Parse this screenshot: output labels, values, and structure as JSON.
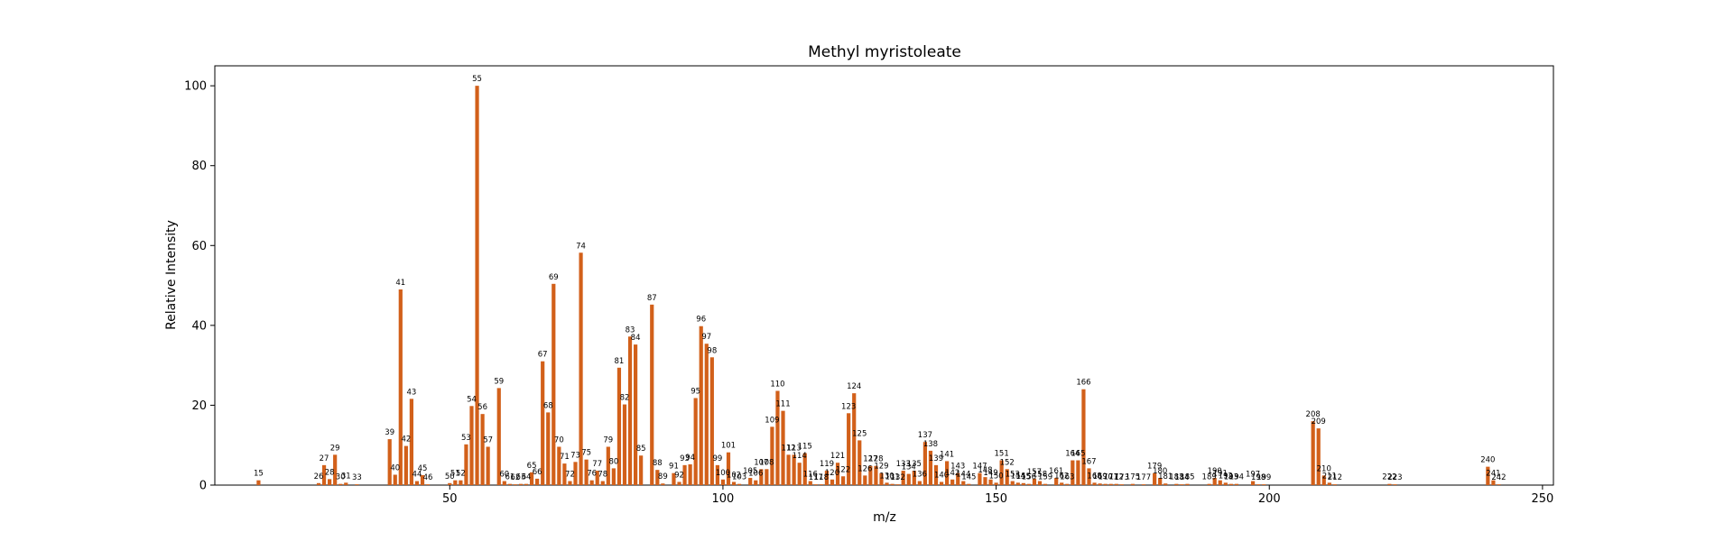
{
  "chart_data": {
    "type": "bar",
    "title": "Methyl myristoleate",
    "xlabel": "m/z",
    "ylabel": "Relative Intensity",
    "xlim": [
      7,
      252
    ],
    "ylim": [
      0,
      105
    ],
    "xticks": [
      50,
      100,
      150,
      200,
      250
    ],
    "yticks": [
      0,
      20,
      40,
      60,
      80,
      100
    ],
    "grid": false,
    "legend": "none",
    "bar_color": "#d2601a",
    "points": [
      {
        "mz": 15,
        "y": 1.2
      },
      {
        "mz": 26,
        "y": 0.5
      },
      {
        "mz": 27,
        "y": 5.0
      },
      {
        "mz": 28,
        "y": 1.5
      },
      {
        "mz": 29,
        "y": 7.6
      },
      {
        "mz": 30,
        "y": 0.3
      },
      {
        "mz": 31,
        "y": 0.6
      },
      {
        "mz": 33,
        "y": 0.2
      },
      {
        "mz": 39,
        "y": 11.5
      },
      {
        "mz": 40,
        "y": 2.6
      },
      {
        "mz": 41,
        "y": 49.0
      },
      {
        "mz": 42,
        "y": 9.8
      },
      {
        "mz": 43,
        "y": 21.6
      },
      {
        "mz": 44,
        "y": 1.0
      },
      {
        "mz": 45,
        "y": 2.5
      },
      {
        "mz": 46,
        "y": 0.2
      },
      {
        "mz": 50,
        "y": 0.5
      },
      {
        "mz": 51,
        "y": 1.2
      },
      {
        "mz": 52,
        "y": 1.2
      },
      {
        "mz": 53,
        "y": 10.2
      },
      {
        "mz": 54,
        "y": 19.8
      },
      {
        "mz": 55,
        "y": 100.0
      },
      {
        "mz": 56,
        "y": 17.8
      },
      {
        "mz": 57,
        "y": 9.6
      },
      {
        "mz": 59,
        "y": 24.3
      },
      {
        "mz": 60,
        "y": 1.0
      },
      {
        "mz": 61,
        "y": 0.3
      },
      {
        "mz": 62,
        "y": 0.2
      },
      {
        "mz": 63,
        "y": 0.3
      },
      {
        "mz": 64,
        "y": 0.3
      },
      {
        "mz": 65,
        "y": 3.2
      },
      {
        "mz": 66,
        "y": 1.6
      },
      {
        "mz": 67,
        "y": 31.0
      },
      {
        "mz": 68,
        "y": 18.2
      },
      {
        "mz": 69,
        "y": 50.4
      },
      {
        "mz": 70,
        "y": 9.6
      },
      {
        "mz": 71,
        "y": 5.4
      },
      {
        "mz": 72,
        "y": 1.0
      },
      {
        "mz": 73,
        "y": 5.8
      },
      {
        "mz": 74,
        "y": 58.2
      },
      {
        "mz": 75,
        "y": 6.4
      },
      {
        "mz": 76,
        "y": 1.2
      },
      {
        "mz": 77,
        "y": 3.6
      },
      {
        "mz": 78,
        "y": 1.0
      },
      {
        "mz": 79,
        "y": 9.6
      },
      {
        "mz": 80,
        "y": 4.2
      },
      {
        "mz": 81,
        "y": 29.4
      },
      {
        "mz": 82,
        "y": 20.2
      },
      {
        "mz": 83,
        "y": 37.2
      },
      {
        "mz": 84,
        "y": 35.2
      },
      {
        "mz": 85,
        "y": 7.4
      },
      {
        "mz": 87,
        "y": 45.2
      },
      {
        "mz": 88,
        "y": 3.8
      },
      {
        "mz": 89,
        "y": 0.4
      },
      {
        "mz": 91,
        "y": 3.0
      },
      {
        "mz": 92,
        "y": 0.8
      },
      {
        "mz": 93,
        "y": 5.0
      },
      {
        "mz": 94,
        "y": 5.2
      },
      {
        "mz": 95,
        "y": 21.8
      },
      {
        "mz": 96,
        "y": 39.8
      },
      {
        "mz": 97,
        "y": 35.4
      },
      {
        "mz": 98,
        "y": 32.0
      },
      {
        "mz": 99,
        "y": 5.0
      },
      {
        "mz": 100,
        "y": 1.4
      },
      {
        "mz": 101,
        "y": 8.2
      },
      {
        "mz": 102,
        "y": 0.8
      },
      {
        "mz": 103,
        "y": 0.3
      },
      {
        "mz": 105,
        "y": 1.8
      },
      {
        "mz": 106,
        "y": 1.2
      },
      {
        "mz": 107,
        "y": 4.0
      },
      {
        "mz": 108,
        "y": 4.0
      },
      {
        "mz": 109,
        "y": 14.6
      },
      {
        "mz": 110,
        "y": 23.6
      },
      {
        "mz": 111,
        "y": 18.6
      },
      {
        "mz": 112,
        "y": 7.6
      },
      {
        "mz": 113,
        "y": 7.6
      },
      {
        "mz": 114,
        "y": 5.6
      },
      {
        "mz": 115,
        "y": 8.0
      },
      {
        "mz": 116,
        "y": 1.0
      },
      {
        "mz": 117,
        "y": 0.2
      },
      {
        "mz": 118,
        "y": 0.2
      },
      {
        "mz": 119,
        "y": 3.6
      },
      {
        "mz": 120,
        "y": 1.4
      },
      {
        "mz": 121,
        "y": 5.6
      },
      {
        "mz": 122,
        "y": 2.2
      },
      {
        "mz": 123,
        "y": 18.0
      },
      {
        "mz": 124,
        "y": 23.0
      },
      {
        "mz": 125,
        "y": 11.2
      },
      {
        "mz": 126,
        "y": 2.4
      },
      {
        "mz": 127,
        "y": 4.8
      },
      {
        "mz": 128,
        "y": 4.8
      },
      {
        "mz": 129,
        "y": 3.0
      },
      {
        "mz": 130,
        "y": 0.6
      },
      {
        "mz": 131,
        "y": 0.3
      },
      {
        "mz": 132,
        "y": 0.2
      },
      {
        "mz": 133,
        "y": 3.6
      },
      {
        "mz": 134,
        "y": 2.8
      },
      {
        "mz": 135,
        "y": 3.6
      },
      {
        "mz": 136,
        "y": 1.0
      },
      {
        "mz": 137,
        "y": 10.8
      },
      {
        "mz": 138,
        "y": 8.6
      },
      {
        "mz": 139,
        "y": 5.0
      },
      {
        "mz": 140,
        "y": 0.8
      },
      {
        "mz": 141,
        "y": 6.0
      },
      {
        "mz": 142,
        "y": 1.4
      },
      {
        "mz": 143,
        "y": 3.0
      },
      {
        "mz": 144,
        "y": 1.0
      },
      {
        "mz": 145,
        "y": 0.3
      },
      {
        "mz": 147,
        "y": 3.0
      },
      {
        "mz": 148,
        "y": 2.0
      },
      {
        "mz": 149,
        "y": 1.4
      },
      {
        "mz": 150,
        "y": 0.6
      },
      {
        "mz": 151,
        "y": 6.2
      },
      {
        "mz": 152,
        "y": 4.0
      },
      {
        "mz": 153,
        "y": 1.0
      },
      {
        "mz": 154,
        "y": 0.6
      },
      {
        "mz": 155,
        "y": 0.5
      },
      {
        "mz": 156,
        "y": 0.3
      },
      {
        "mz": 157,
        "y": 1.6
      },
      {
        "mz": 158,
        "y": 1.0
      },
      {
        "mz": 159,
        "y": 0.3
      },
      {
        "mz": 161,
        "y": 1.8
      },
      {
        "mz": 162,
        "y": 0.6
      },
      {
        "mz": 163,
        "y": 0.3
      },
      {
        "mz": 164,
        "y": 6.2
      },
      {
        "mz": 165,
        "y": 6.2
      },
      {
        "mz": 166,
        "y": 24.0
      },
      {
        "mz": 167,
        "y": 4.2
      },
      {
        "mz": 168,
        "y": 0.6
      },
      {
        "mz": 169,
        "y": 0.4
      },
      {
        "mz": 170,
        "y": 0.3
      },
      {
        "mz": 171,
        "y": 0.3
      },
      {
        "mz": 172,
        "y": 0.3
      },
      {
        "mz": 173,
        "y": 0.2
      },
      {
        "mz": 175,
        "y": 0.3
      },
      {
        "mz": 177,
        "y": 0.2
      },
      {
        "mz": 179,
        "y": 3.0
      },
      {
        "mz": 180,
        "y": 1.8
      },
      {
        "mz": 181,
        "y": 0.4
      },
      {
        "mz": 183,
        "y": 0.3
      },
      {
        "mz": 184,
        "y": 0.2
      },
      {
        "mz": 185,
        "y": 0.3
      },
      {
        "mz": 189,
        "y": 0.3
      },
      {
        "mz": 190,
        "y": 1.8
      },
      {
        "mz": 191,
        "y": 1.2
      },
      {
        "mz": 192,
        "y": 0.6
      },
      {
        "mz": 193,
        "y": 0.3
      },
      {
        "mz": 194,
        "y": 0.3
      },
      {
        "mz": 197,
        "y": 1.0
      },
      {
        "mz": 198,
        "y": 0.2
      },
      {
        "mz": 199,
        "y": 0.2
      },
      {
        "mz": 208,
        "y": 16.0
      },
      {
        "mz": 209,
        "y": 14.2
      },
      {
        "mz": 210,
        "y": 2.4
      },
      {
        "mz": 211,
        "y": 0.6
      },
      {
        "mz": 212,
        "y": 0.2
      },
      {
        "mz": 222,
        "y": 0.3
      },
      {
        "mz": 223,
        "y": 0.2
      },
      {
        "mz": 240,
        "y": 4.6
      },
      {
        "mz": 241,
        "y": 1.2
      },
      {
        "mz": 242,
        "y": 0.2
      }
    ]
  }
}
